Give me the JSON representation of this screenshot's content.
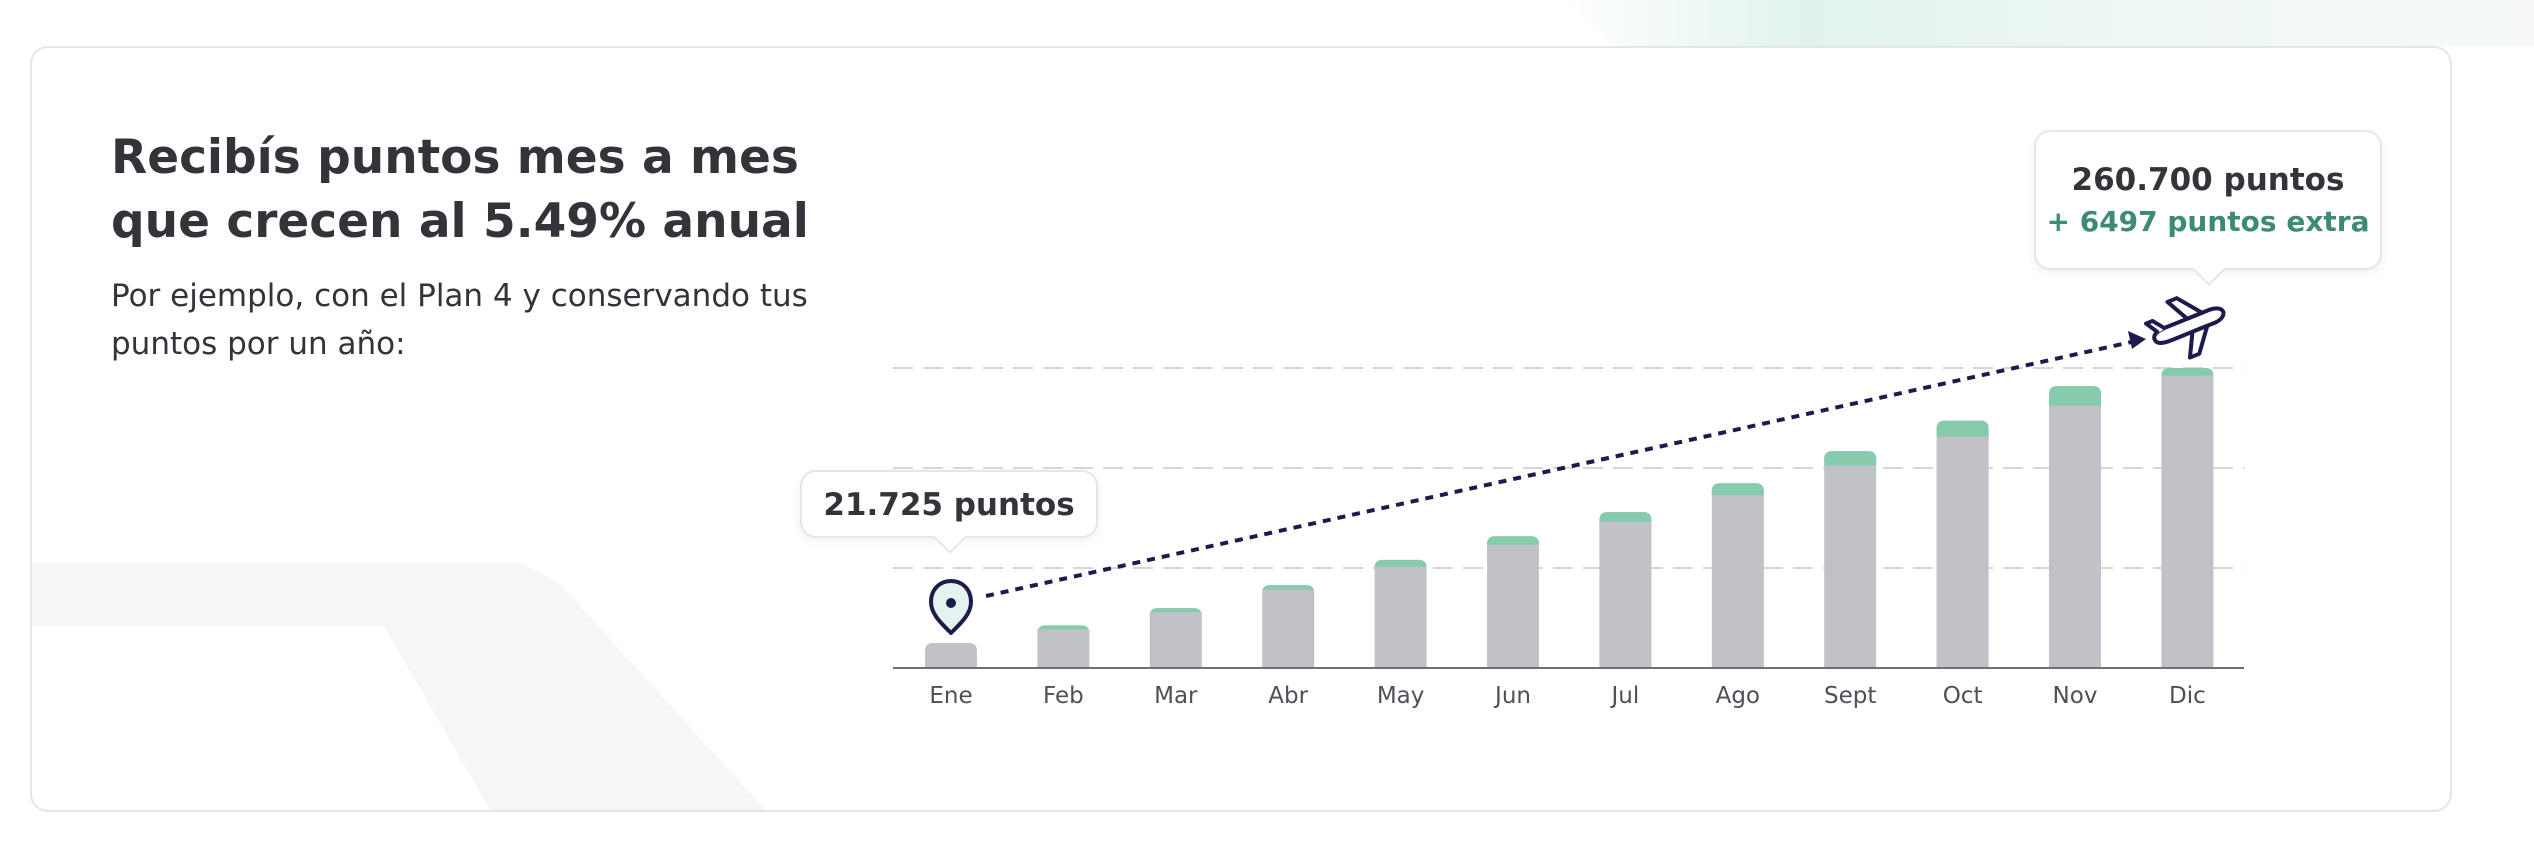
{
  "headline": "Recibís puntos mes a mes que crecen al 5.49% anual",
  "subtext": "Por ejemplo, con el Plan 4 y conservando tus puntos por un año:",
  "callouts": {
    "start": "21.725 puntos",
    "end_total": "260.700 puntos",
    "end_extra": "+ 6497 puntos extra"
  },
  "icons": {
    "start": "map-pin-icon",
    "end": "airplane-icon"
  },
  "colors": {
    "base": "#c0c2c8",
    "extra": "#86cbac",
    "arrow": "#1d1a4d",
    "text": "#32343a",
    "extra_text": "#3d8a76"
  },
  "chart_data": {
    "type": "bar",
    "stacked": true,
    "categories": [
      "Ene",
      "Feb",
      "Mar",
      "Abr",
      "May",
      "Jun",
      "Jul",
      "Ago",
      "Sept",
      "Oct",
      "Nov",
      "Dic"
    ],
    "series": [
      {
        "name": "",
        "values": [
          21725,
          36000,
          50000,
          68000,
          88000,
          107000,
          127000,
          150000,
          176000,
          201000,
          228000,
          254203
        ]
      },
      {
        "name": "",
        "values": [
          0,
          1000,
          2000,
          4000,
          6000,
          7500,
          8500,
          10500,
          12500,
          14000,
          17000,
          6497
        ]
      }
    ],
    "ylim": [
      0,
      260700
    ],
    "grid": true,
    "gridlines": [
      86900,
      173800,
      260700
    ],
    "title": "",
    "xlabel": "",
    "ylabel": ""
  }
}
